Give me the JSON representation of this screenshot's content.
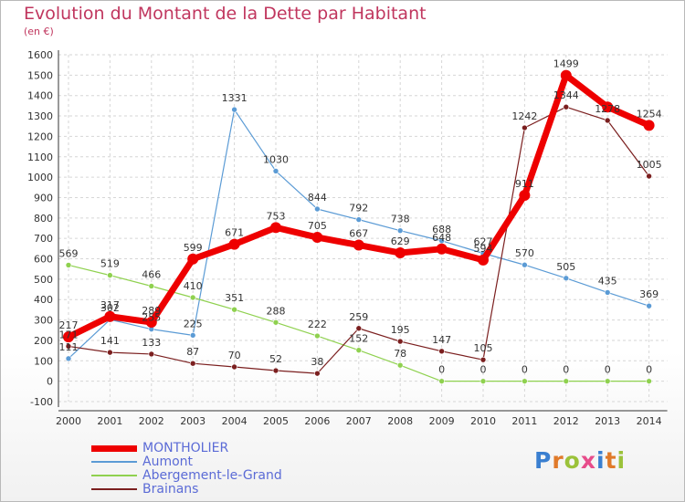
{
  "header": {
    "title": "Evolution du Montant de la Dette par Habitant",
    "unit": "(en €)"
  },
  "logo": {
    "text": "Proxiti"
  },
  "chart_data": {
    "type": "line",
    "title": "Evolution du Montant de la Dette par Habitant",
    "ylabel": "(en €)",
    "xlabel": "",
    "ylim": [
      -100,
      1600
    ],
    "yticks": [
      -100,
      0,
      100,
      200,
      300,
      400,
      500,
      600,
      700,
      800,
      900,
      1000,
      1100,
      1200,
      1300,
      1400,
      1500,
      1600
    ],
    "categories": [
      "2000",
      "2001",
      "2002",
      "2003",
      "2004",
      "2005",
      "2006",
      "2007",
      "2008",
      "2009",
      "2010",
      "2011",
      "2012",
      "2013",
      "2014"
    ],
    "grid": true,
    "legend_position": "bottom-left",
    "series": [
      {
        "name": "MONTHOLIER",
        "color": "#ee0000",
        "values": [
          217,
          317,
          289,
          599,
          671,
          753,
          705,
          667,
          629,
          648,
          594,
          911,
          1499,
          1344,
          1254
        ],
        "labels": [
          "217",
          "317",
          "289",
          "599",
          "671",
          "753",
          "705",
          "667",
          "629",
          "648",
          "594",
          "911",
          "1499",
          "",
          "1254"
        ]
      },
      {
        "name": "Aumont",
        "color": "#5b9bd5",
        "values": [
          111,
          302,
          255,
          225,
          1331,
          1030,
          844,
          792,
          738,
          688,
          627,
          570,
          505,
          435,
          369
        ],
        "labels": [
          "111",
          "302",
          "255",
          "225",
          "1331",
          "1030",
          "844",
          "792",
          "738",
          "688",
          "627",
          "570",
          "505",
          "435",
          "369"
        ]
      },
      {
        "name": "Abergement-le-Grand",
        "color": "#8fd14f",
        "values": [
          569,
          519,
          466,
          410,
          351,
          288,
          222,
          152,
          78,
          0,
          0,
          0,
          0,
          0,
          0
        ],
        "labels": [
          "569",
          "519",
          "466",
          "410",
          "351",
          "288",
          "222",
          "152",
          "78",
          "0",
          "0",
          "0",
          "0",
          "0",
          "0"
        ]
      },
      {
        "name": "Brainans",
        "color": "#7b1f1f",
        "values": [
          171,
          141,
          133,
          87,
          70,
          52,
          38,
          259,
          195,
          147,
          105,
          1242,
          1344,
          1278,
          1005
        ],
        "labels": [
          "171",
          "141",
          "133",
          "87",
          "70",
          "52",
          "38",
          "259",
          "195",
          "147",
          "105",
          "1242",
          "1344",
          "1278",
          "1005"
        ]
      }
    ]
  }
}
